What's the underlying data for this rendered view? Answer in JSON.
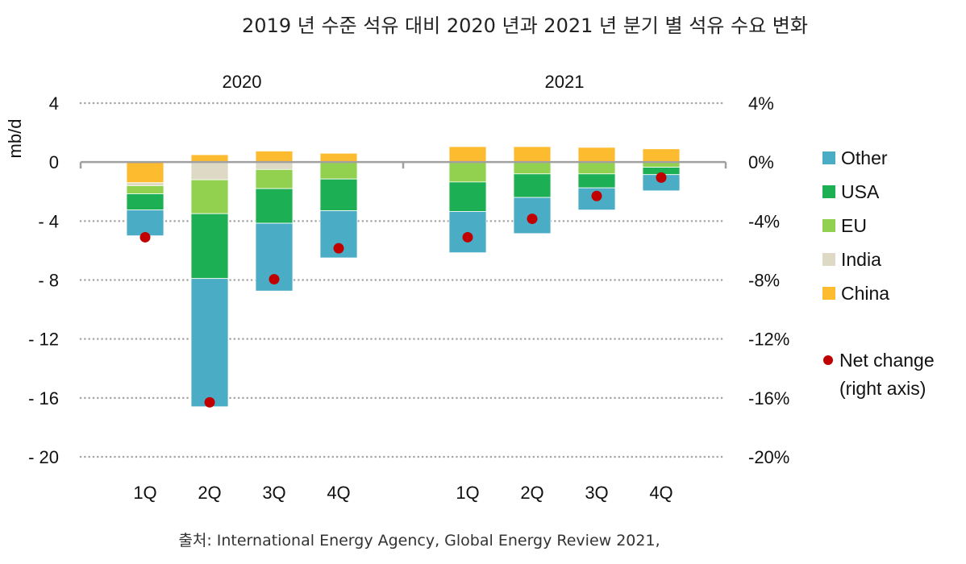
{
  "chart_data": {
    "type": "bar",
    "stacked": true,
    "title": "2019 년 수준 석유 대비 2020 년과 2021 년 분기 별 석유 수요 변화",
    "ylabel": "mb/d",
    "ylabel_right": "",
    "source": "출처: International Energy Agency, Global Energy Review 2021,",
    "ylim": [
      -20,
      4
    ],
    "y_ticks": [
      4,
      0,
      -4,
      -8,
      -12,
      -16,
      -20
    ],
    "y_tick_labels": [
      "4",
      "0",
      "- 4",
      "- 8",
      "- 12",
      "- 16",
      "- 20"
    ],
    "y2lim": [
      -20,
      4
    ],
    "y2_ticks": [
      4,
      0,
      -4,
      -8,
      -12,
      -16,
      -20
    ],
    "y2_tick_labels": [
      "4%",
      "0%",
      "-4%",
      "-8%",
      "-12%",
      "-16%",
      "-20%"
    ],
    "grid": true,
    "groups": [
      {
        "label": "2020",
        "categories": [
          "1Q",
          "2Q",
          "3Q",
          "4Q"
        ]
      },
      {
        "label": "2021",
        "categories": [
          "1Q",
          "2Q",
          "3Q",
          "4Q"
        ]
      }
    ],
    "categories": [
      "2020 1Q",
      "2020 2Q",
      "2020 3Q",
      "2020 4Q",
      "2021 1Q",
      "2021 2Q",
      "2021 3Q",
      "2021 4Q"
    ],
    "series": [
      {
        "name": "China",
        "color": "#FDBB30",
        "values": [
          -1.4,
          0.5,
          0.75,
          0.6,
          1.05,
          1.05,
          1.0,
          0.9
        ]
      },
      {
        "name": "India",
        "color": "#DDD9C4",
        "values": [
          -0.2,
          -1.2,
          -0.5,
          0.0,
          0.0,
          0.0,
          0.0,
          0.0
        ]
      },
      {
        "name": "EU",
        "color": "#92D050",
        "values": [
          -0.55,
          -2.3,
          -1.3,
          -1.15,
          -1.35,
          -0.8,
          -0.8,
          -0.35
        ]
      },
      {
        "name": "USA",
        "color": "#1DAF53",
        "values": [
          -1.1,
          -4.4,
          -2.35,
          -2.15,
          -2.0,
          -1.6,
          -0.95,
          -0.5
        ]
      },
      {
        "name": "Other",
        "color": "#4BACC6",
        "values": [
          -1.75,
          -8.7,
          -4.6,
          -3.2,
          -2.8,
          -2.45,
          -1.5,
          -1.1
        ]
      }
    ],
    "net_change": {
      "name": "Net change (right axis)",
      "color": "#C00000",
      "axis": "right",
      "unit": "%",
      "values": [
        -5.1,
        -16.3,
        -7.95,
        -5.85,
        -5.1,
        -3.85,
        -2.3,
        -1.05
      ]
    },
    "legend": {
      "placement": "right",
      "items": [
        {
          "label": "Other",
          "color": "#4BACC6",
          "marker": "square"
        },
        {
          "label": "USA",
          "color": "#1DAF53",
          "marker": "square"
        },
        {
          "label": "EU",
          "color": "#92D050",
          "marker": "square"
        },
        {
          "label": "India",
          "color": "#DDD9C4",
          "marker": "square"
        },
        {
          "label": "China",
          "color": "#FDBB30",
          "marker": "square"
        },
        {
          "label": "Net change",
          "label2": "(right axis)",
          "color": "#C00000",
          "marker": "circle"
        }
      ]
    }
  }
}
